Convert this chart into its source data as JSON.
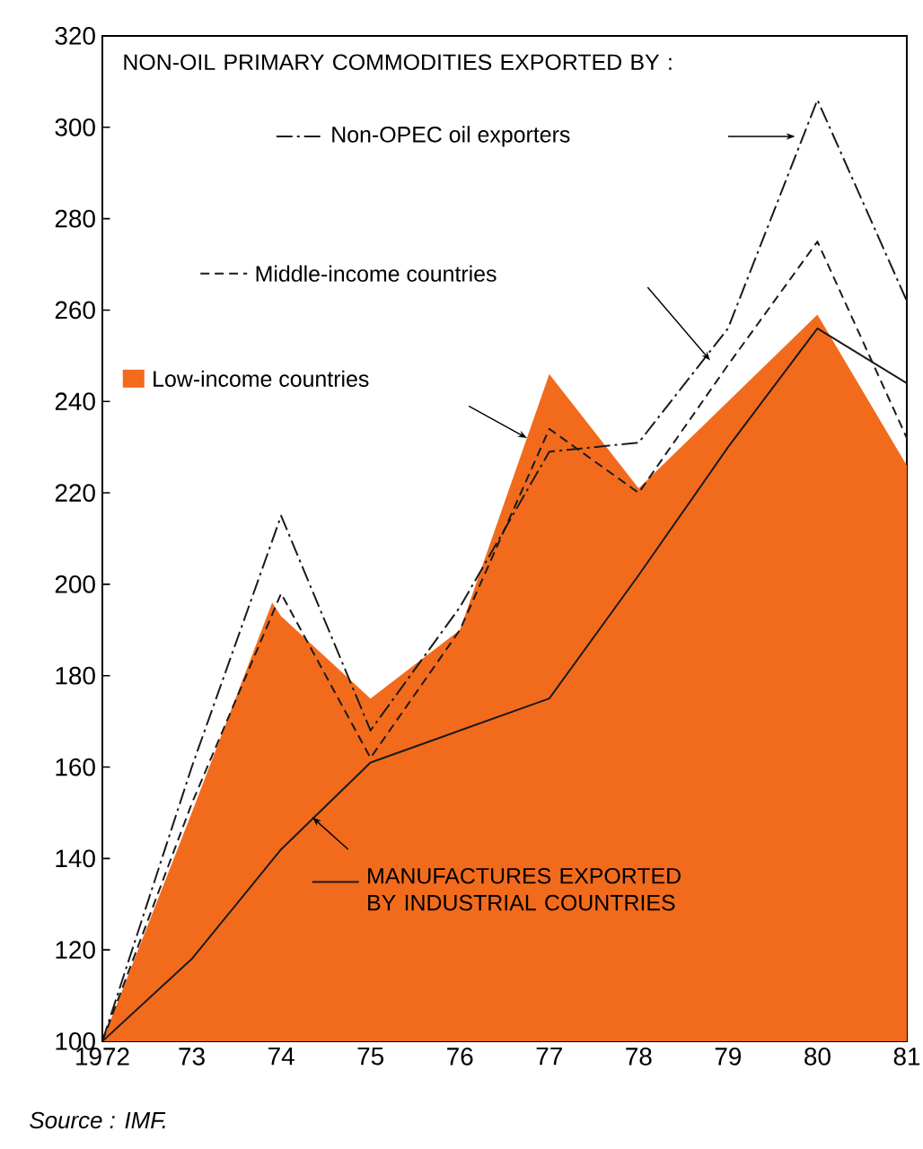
{
  "chart_data": {
    "type": "line",
    "annotations": [
      "NON-OIL PRIMARY COMMODITIES EXPORTED BY :",
      "Source : IMF."
    ],
    "xlim": [
      1972,
      1981
    ],
    "xticks": [
      {
        "value": 1972,
        "label": "1972"
      },
      {
        "value": 1973,
        "label": "73"
      },
      {
        "value": 1974,
        "label": "74"
      },
      {
        "value": 1975,
        "label": "75"
      },
      {
        "value": 1976,
        "label": "76"
      },
      {
        "value": 1977,
        "label": "77"
      },
      {
        "value": 1978,
        "label": "78"
      },
      {
        "value": 1979,
        "label": "79"
      },
      {
        "value": 1980,
        "label": "80"
      },
      {
        "value": 1981,
        "label": "81"
      }
    ],
    "ylim": [
      100,
      320
    ],
    "yticks": [
      100,
      120,
      140,
      160,
      180,
      200,
      220,
      240,
      260,
      280,
      300,
      320
    ],
    "legend": "top left",
    "series": [
      {
        "name": "Low-income countries",
        "type": "area",
        "color": "#f26b1d",
        "x": [
          1972,
          1973,
          1973.9,
          1974,
          1975,
          1976,
          1977,
          1978,
          1979,
          1980,
          1981
        ],
        "values": [
          100,
          150,
          196,
          193,
          175,
          190,
          246,
          221,
          240,
          259,
          226
        ]
      },
      {
        "name": "Middle-income countries",
        "line_style": "dashed",
        "color": "#1a1a1a",
        "x": [
          1972,
          1973,
          1974,
          1975,
          1976,
          1977,
          1978,
          1979,
          1980,
          1981
        ],
        "values": [
          100,
          152,
          198,
          162,
          190,
          234,
          220,
          248,
          275,
          232
        ]
      },
      {
        "name": "Non-OPEC oil exporters",
        "line_style": "dashdot",
        "color": "#1a1a1a",
        "x": [
          1972,
          1973,
          1974,
          1975,
          1976,
          1977,
          1978,
          1979,
          1980,
          1981
        ],
        "values": [
          100,
          160,
          215,
          168,
          195,
          229,
          231,
          256,
          306,
          262
        ]
      },
      {
        "name": "MANUFACTURES EXPORTED BY INDUSTRIAL COUNTRIES",
        "line_style": "solid",
        "color": "#1a1a1a",
        "x": [
          1972,
          1973,
          1974,
          1975,
          1976,
          1977,
          1978,
          1979,
          1980,
          1981
        ],
        "values": [
          100,
          118,
          142,
          161,
          168,
          175,
          202,
          230,
          256,
          244
        ]
      }
    ]
  }
}
